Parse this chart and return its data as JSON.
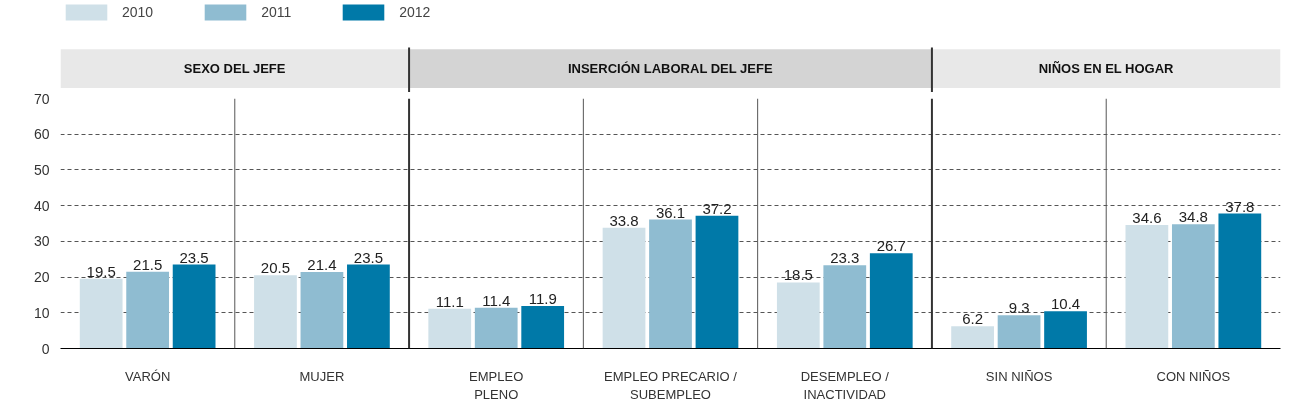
{
  "chart_data": {
    "type": "bar",
    "categories": [
      "VARÓN",
      "MUJER",
      "EMPLEO\nPLENO",
      "EMPLEO PRECARIO /\nSUBEMPLEO",
      "DESEMPLEO /\nINACTIVIDAD",
      "SIN NIÑOS",
      "CON NIÑOS"
    ],
    "series": [
      {
        "name": "2010",
        "color": "#cfe0e8",
        "values": [
          19.5,
          20.5,
          11.1,
          33.8,
          18.5,
          6.2,
          34.6
        ]
      },
      {
        "name": "2011",
        "color": "#8fbcd1",
        "values": [
          21.5,
          21.4,
          11.4,
          36.1,
          23.3,
          9.3,
          34.8
        ]
      },
      {
        "name": "2012",
        "color": "#0079a8",
        "values": [
          23.5,
          23.5,
          11.9,
          37.2,
          26.7,
          10.4,
          37.8
        ]
      }
    ],
    "ylim": [
      0,
      70
    ],
    "yticks": [
      0,
      10,
      20,
      30,
      40,
      50,
      60,
      70
    ],
    "grid": "y",
    "legend": "top left",
    "data_labels": true,
    "annotations": [
      "SEXO DEL JEFE",
      "INSERCIÓN LABORAL DEL JEFE",
      "NIÑOS EN EL HOGAR"
    ]
  }
}
